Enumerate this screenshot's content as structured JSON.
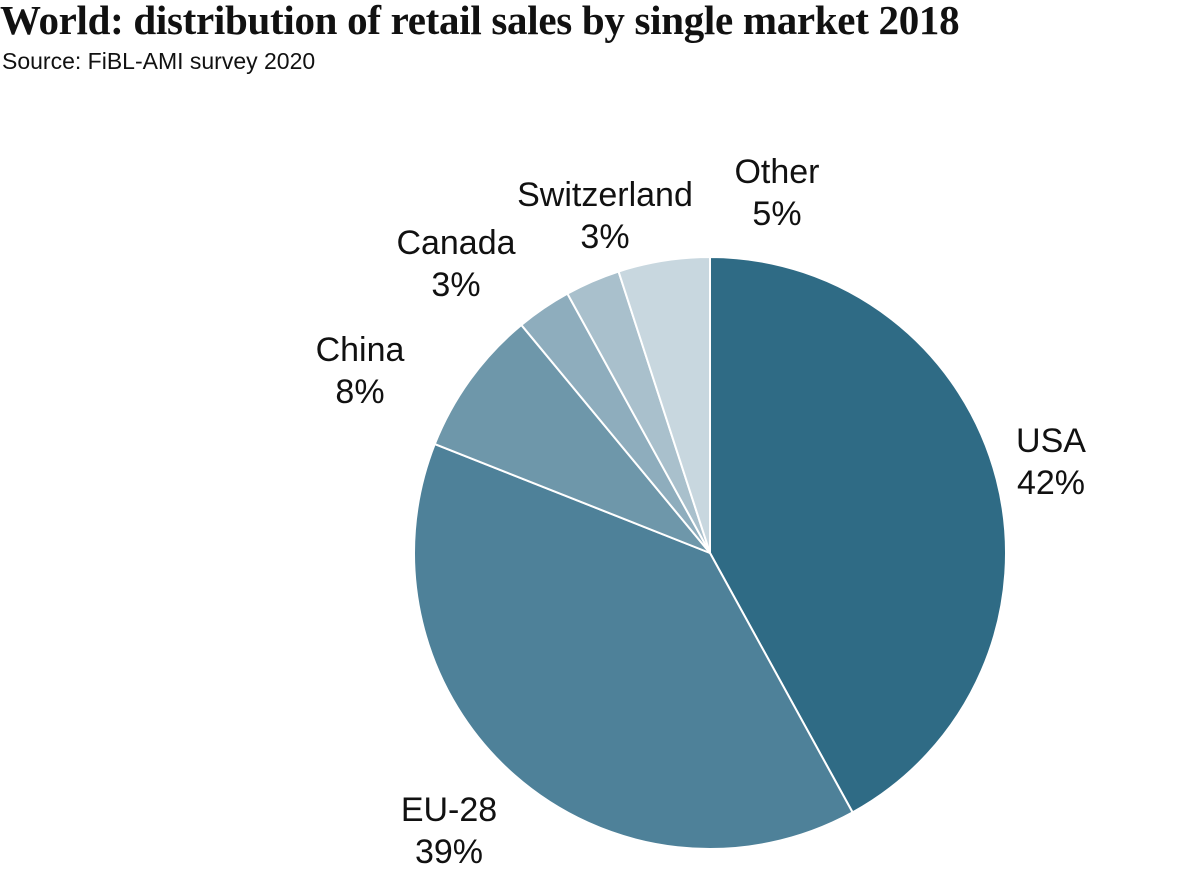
{
  "title": "World: distribution of retail sales by single market 2018",
  "subtitle": "Source: FiBL-AMI survey 2020",
  "chart_data": {
    "type": "pie",
    "title": "World: distribution of retail sales by single market 2018",
    "subtitle": "Source: FiBL-AMI survey 2020",
    "unit": "%",
    "start": "12 o'clock",
    "direction": "clockwise",
    "slices": [
      {
        "label": "USA",
        "value": 42,
        "value_label": "42%",
        "color": "#2f6b85"
      },
      {
        "label": "EU-28",
        "value": 39,
        "value_label": "39%",
        "color": "#4e8199"
      },
      {
        "label": "China",
        "value": 8,
        "value_label": "8%",
        "color": "#6e97aa"
      },
      {
        "label": "Canada",
        "value": 3,
        "value_label": "3%",
        "color": "#8eadbd"
      },
      {
        "label": "Switzerland",
        "value": 3,
        "value_label": "3%",
        "color": "#a9c0cc"
      },
      {
        "label": "Other",
        "value": 5,
        "value_label": "5%",
        "color": "#c8d7df"
      }
    ]
  }
}
